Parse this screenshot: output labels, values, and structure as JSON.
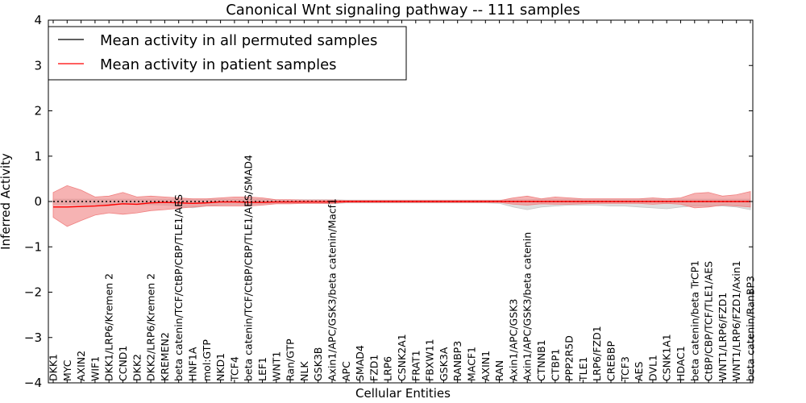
{
  "chart_data": {
    "type": "line",
    "title": "Canonical Wnt signaling pathway -- 111 samples",
    "xlabel": "Cellular Entities",
    "ylabel": "Inferred Activity",
    "ylim": [
      -4,
      4
    ],
    "yticks": [
      -4,
      -3,
      -2,
      -1,
      0,
      1,
      2,
      3,
      4
    ],
    "ytick_labels": [
      "−4",
      "−3",
      "−2",
      "−1",
      "0",
      "1",
      "2",
      "3",
      "4"
    ],
    "grid": false,
    "legend_position": "top-left",
    "categories": [
      "DKK1",
      "MYC",
      "AXIN2",
      "WIF1",
      "DKK1/LRP6/Kremen 2",
      "CCND1",
      "DKK2",
      "DKK2/LRP6/Kremen 2",
      "KREMEN2",
      "beta catenin/TCF/CtBP/CBP/TLE1/AES",
      "HNF1A",
      "mol:GTP",
      "NKD1",
      "TCF4",
      "beta catenin/TCF/CtBP/CBP/TLE1/AES/SMAD4",
      "LEF1",
      "WNT1",
      "Ran/GTP",
      "NLK",
      "GSK3B",
      "Axin1/APC/GSK3/beta catenin/Macf1",
      "APC",
      "SMAD4",
      "FZD1",
      "LRP6",
      "CSNK2A1",
      "FRAT1",
      "FBXW11",
      "GSK3A",
      "RANBP3",
      "MACF1",
      "AXIN1",
      "RAN",
      "Axin1/APC/GSK3",
      "Axin1/APC/GSK3/beta catenin",
      "CTNNB1",
      "CTBP1",
      "PPP2R5D",
      "TLE1",
      "LRP6/FZD1",
      "CREBBP",
      "TCF3",
      "AES",
      "DVL1",
      "CSNK1A1",
      "HDAC1",
      "beta catenin/beta TrCP1",
      "CtBP/CBP/TCF/TLE1/AES",
      "WNT1/LRP6/FZD1",
      "WNT1/LRP6/FZD1/Axin1",
      "beta catenin/RanBP3"
    ],
    "series": [
      {
        "name": "Mean activity in all permuted samples",
        "color": "#000000",
        "style": "dotted",
        "band_color": "#c8c8c8",
        "values": [
          0.0,
          0.0,
          0.0,
          0.0,
          0.0,
          0.0,
          0.0,
          0.0,
          0.0,
          0.0,
          0.0,
          0.0,
          0.0,
          0.0,
          0.0,
          0.0,
          0.0,
          0.0,
          0.0,
          0.0,
          0.0,
          0.0,
          0.0,
          0.0,
          0.0,
          0.0,
          0.0,
          0.0,
          0.0,
          0.0,
          0.0,
          0.0,
          0.0,
          0.0,
          0.0,
          0.0,
          0.0,
          0.0,
          0.0,
          0.0,
          0.0,
          0.0,
          0.0,
          0.0,
          0.0,
          0.0,
          0.0,
          0.0,
          0.0,
          0.0,
          0.0
        ],
        "upper": [
          0.05,
          0.05,
          0.05,
          0.05,
          0.05,
          0.05,
          0.05,
          0.05,
          0.05,
          0.05,
          0.05,
          0.05,
          0.05,
          0.05,
          0.05,
          0.05,
          0.04,
          0.04,
          0.04,
          0.04,
          0.04,
          0.03,
          0.03,
          0.03,
          0.03,
          0.03,
          0.03,
          0.03,
          0.03,
          0.03,
          0.03,
          0.03,
          0.03,
          0.04,
          0.04,
          0.05,
          0.05,
          0.05,
          0.05,
          0.05,
          0.05,
          0.05,
          0.05,
          0.05,
          0.05,
          0.05,
          0.05,
          0.05,
          0.05,
          0.05,
          0.05
        ],
        "lower": [
          -0.06,
          -0.06,
          -0.06,
          -0.06,
          -0.06,
          -0.06,
          -0.07,
          -0.07,
          -0.08,
          -0.1,
          -0.14,
          -0.1,
          -0.07,
          -0.06,
          -0.06,
          -0.05,
          -0.04,
          -0.04,
          -0.04,
          -0.04,
          -0.05,
          -0.03,
          -0.03,
          -0.03,
          -0.03,
          -0.03,
          -0.03,
          -0.03,
          -0.03,
          -0.03,
          -0.03,
          -0.03,
          -0.04,
          -0.12,
          -0.18,
          -0.12,
          -0.1,
          -0.08,
          -0.08,
          -0.08,
          -0.1,
          -0.1,
          -0.12,
          -0.14,
          -0.16,
          -0.12,
          -0.1,
          -0.1,
          -0.1,
          -0.12,
          -0.18
        ]
      },
      {
        "name": "Mean activity in patient samples",
        "color": "#ff0000",
        "style": "solid",
        "band_color": "#f08080",
        "values": [
          -0.12,
          -0.12,
          -0.11,
          -0.1,
          -0.08,
          -0.05,
          -0.06,
          -0.03,
          -0.02,
          -0.03,
          -0.04,
          -0.03,
          -0.01,
          -0.01,
          -0.02,
          -0.02,
          -0.01,
          -0.01,
          -0.01,
          -0.01,
          -0.01,
          0.0,
          0.0,
          0.0,
          0.0,
          0.0,
          0.0,
          0.0,
          0.0,
          0.0,
          0.0,
          0.0,
          0.0,
          0.0,
          0.0,
          0.0,
          0.0,
          0.0,
          0.0,
          0.0,
          0.0,
          0.0,
          0.0,
          0.0,
          0.0,
          0.0,
          0.0,
          0.0,
          0.0,
          0.0,
          0.0
        ],
        "upper": [
          0.2,
          0.35,
          0.25,
          0.1,
          0.12,
          0.2,
          0.1,
          0.12,
          0.1,
          0.08,
          0.06,
          0.06,
          0.08,
          0.1,
          0.1,
          0.08,
          0.04,
          0.04,
          0.03,
          0.03,
          0.03,
          0.02,
          0.02,
          0.02,
          0.02,
          0.02,
          0.02,
          0.02,
          0.02,
          0.02,
          0.02,
          0.02,
          0.02,
          0.08,
          0.12,
          0.06,
          0.1,
          0.08,
          0.06,
          0.06,
          0.06,
          0.06,
          0.06,
          0.08,
          0.06,
          0.08,
          0.18,
          0.2,
          0.12,
          0.15,
          0.22
        ],
        "lower": [
          -0.35,
          -0.55,
          -0.42,
          -0.3,
          -0.25,
          -0.28,
          -0.25,
          -0.2,
          -0.18,
          -0.15,
          -0.12,
          -0.1,
          -0.1,
          -0.1,
          -0.1,
          -0.08,
          -0.05,
          -0.05,
          -0.04,
          -0.04,
          -0.04,
          -0.02,
          -0.02,
          -0.02,
          -0.02,
          -0.02,
          -0.02,
          -0.02,
          -0.02,
          -0.02,
          -0.02,
          -0.02,
          -0.02,
          -0.06,
          -0.08,
          -0.05,
          -0.06,
          -0.06,
          -0.05,
          -0.04,
          -0.04,
          -0.04,
          -0.04,
          -0.06,
          -0.04,
          -0.06,
          -0.14,
          -0.12,
          -0.08,
          -0.1,
          -0.12
        ]
      }
    ]
  }
}
